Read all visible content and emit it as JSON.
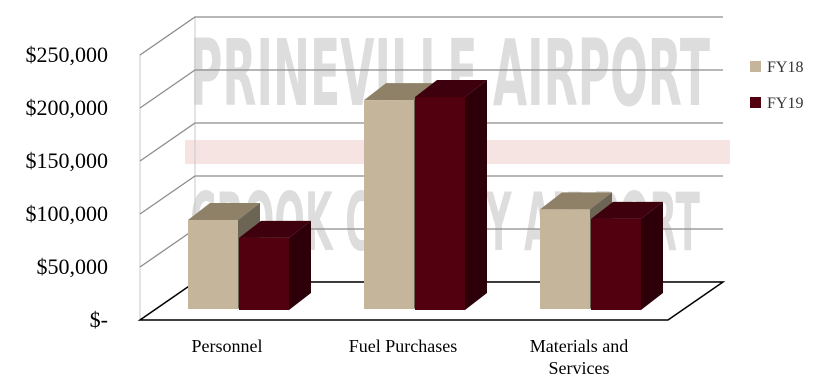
{
  "watermark": {
    "line1": "PRINEVILLE AIRPORT",
    "line2": "CROOK COUNTY AIRPORT"
  },
  "chart_data": {
    "type": "bar",
    "categories": [
      "Personnel",
      "Fuel Purchases",
      "Materials and Services"
    ],
    "category_lines": [
      [
        "Personnel"
      ],
      [
        "Fuel Purchases"
      ],
      [
        "Materials and",
        "Services"
      ]
    ],
    "series": [
      {
        "name": "FY18",
        "values": [
          84000,
          197000,
          94000
        ],
        "color": "#c4b59b"
      },
      {
        "name": "FY19",
        "values": [
          68000,
          201000,
          86000
        ],
        "color": "#520010"
      }
    ],
    "y_ticks": [
      0,
      50000,
      100000,
      150000,
      200000,
      250000
    ],
    "y_tick_labels": [
      "$-",
      "$50,000",
      "$100,000",
      "$150,000",
      "$200,000",
      "$250,000"
    ],
    "ylim": [
      0,
      250000
    ],
    "grid": true,
    "legend": "right",
    "style": "3d-column"
  }
}
